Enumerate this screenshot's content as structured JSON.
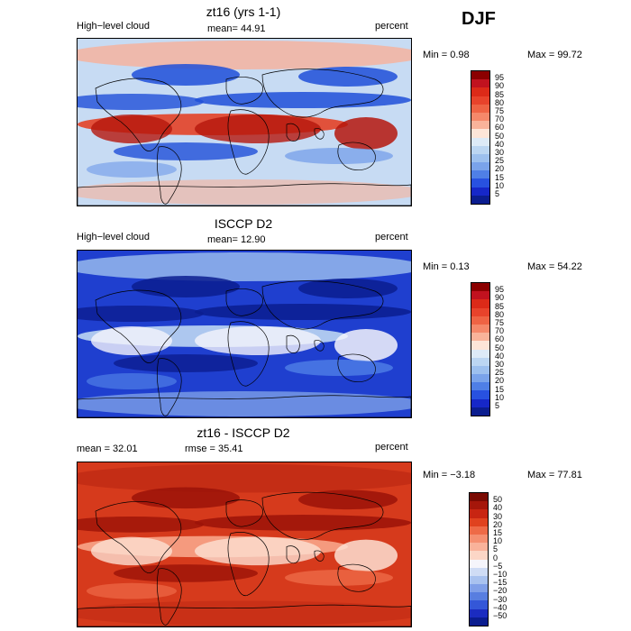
{
  "season_label": "DJF",
  "panels": [
    {
      "title": "zt16 (yrs 1-1)",
      "variable": "High−level cloud",
      "stat": "mean=  44.91",
      "units": "percent",
      "min_text": "Min =   0.98",
      "max_text": "Max =  99.72",
      "colorbar": {
        "levels": [
          "95",
          "90",
          "85",
          "80",
          "75",
          "70",
          "60",
          "50",
          "40",
          "30",
          "25",
          "20",
          "15",
          "10",
          "5"
        ],
        "colors": [
          "#8b0000",
          "#c1121f",
          "#dc2a18",
          "#e8432b",
          "#ef6344",
          "#f5886a",
          "#f9b39a",
          "#fde5d8",
          "#ddeaf7",
          "#bcd6f2",
          "#9dc0ee",
          "#7aa3ea",
          "#4f7fe6",
          "#2851e0",
          "#1627c8",
          "#0b1d8f"
        ]
      },
      "colors": {
        "base": "#c7dbf3",
        "low": "#1f4fd8",
        "mid": "#7aa3ea",
        "high": "#e34127",
        "peak": "#b5160d",
        "warm": "#f7b09a"
      }
    },
    {
      "title": "ISCCP D2",
      "variable": "High−level cloud",
      "stat": "mean=  12.90",
      "units": "percent",
      "min_text": "Min =   0.13",
      "max_text": "Max =  54.22",
      "colorbar": {
        "levels": [
          "95",
          "90",
          "85",
          "80",
          "75",
          "70",
          "60",
          "50",
          "40",
          "30",
          "25",
          "20",
          "15",
          "10",
          "5"
        ],
        "colors": [
          "#8b0000",
          "#c1121f",
          "#dc2a18",
          "#e8432b",
          "#ef6344",
          "#f5886a",
          "#f9b39a",
          "#fde5d8",
          "#ddeaf7",
          "#bcd6f2",
          "#9dc0ee",
          "#7aa3ea",
          "#4f7fe6",
          "#2851e0",
          "#1627c8",
          "#0b1d8f"
        ]
      },
      "colors": {
        "base": "#1f3fcf",
        "low": "#0b1d8f",
        "mid": "#4f7fe6",
        "high": "#bcd6f2",
        "peak": "#f4f4fb",
        "warm": "#9dc0ee"
      }
    },
    {
      "title": "zt16 - ISCCP D2",
      "variable": "mean =   32.01",
      "stat": "rmse =   35.41",
      "units": "percent",
      "min_text": "Min =  −3.18",
      "max_text": "Max =  77.81",
      "colorbar": {
        "levels": [
          "50",
          "40",
          "30",
          "20",
          "15",
          "10",
          "5",
          "0",
          "−5",
          "−10",
          "−15",
          "−20",
          "−30",
          "−40",
          "−50"
        ],
        "colors": [
          "#7a0a02",
          "#a5160a",
          "#c82512",
          "#e0421f",
          "#ee6a47",
          "#f58f71",
          "#f9b29a",
          "#fcd6c6",
          "#f5f5fb",
          "#cfdcf5",
          "#a9c2ef",
          "#809fe8",
          "#587ee0",
          "#3457d8",
          "#1b2cc0",
          "#0b1d8f"
        ]
      },
      "colors": {
        "base": "#d63a1c",
        "low": "#9b1308",
        "mid": "#ee6a47",
        "high": "#f8a58a",
        "peak": "#fde0d2",
        "warm": "#bf2a14"
      }
    }
  ]
}
